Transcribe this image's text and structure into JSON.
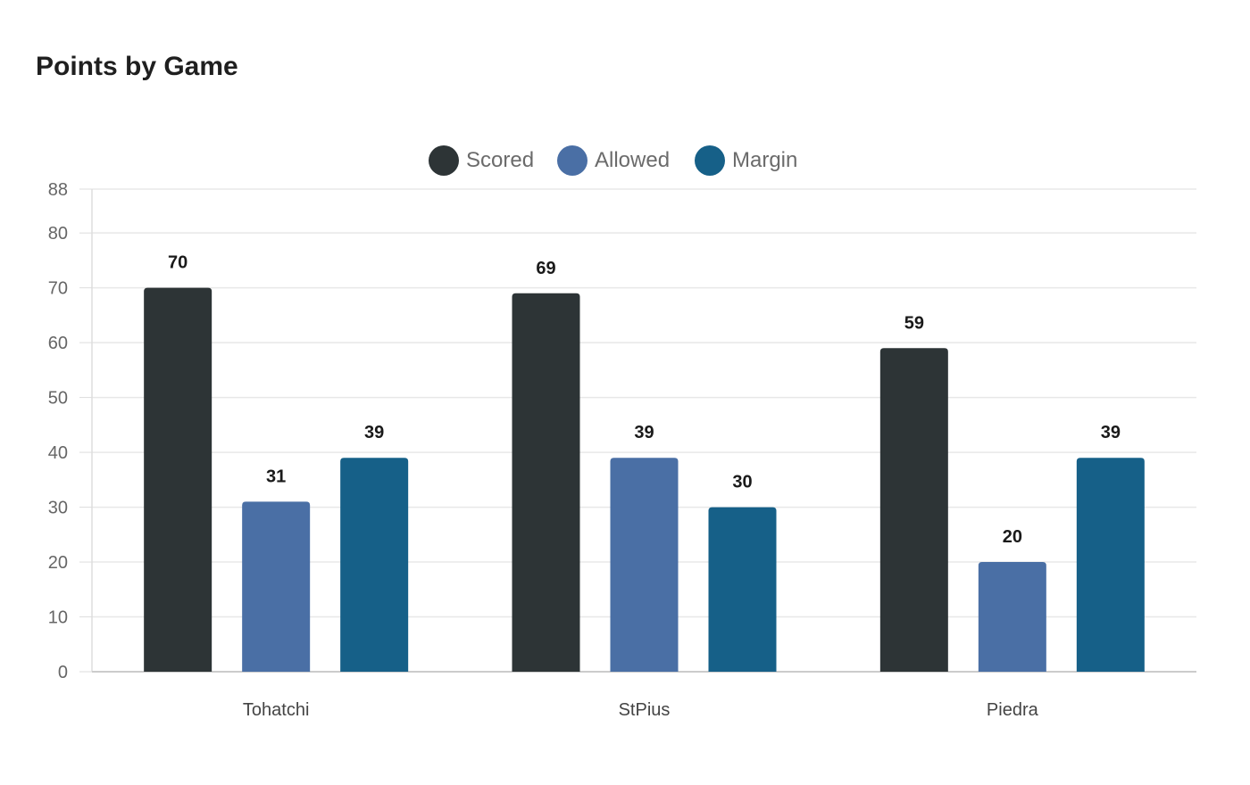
{
  "chart_data": {
    "type": "bar",
    "title": "Points by Game",
    "categories": [
      "Tohatchi",
      "StPius",
      "Piedra"
    ],
    "series": [
      {
        "name": "Scored",
        "values": [
          70,
          69,
          59
        ],
        "color": "#2d3436"
      },
      {
        "name": "Allowed",
        "values": [
          31,
          39,
          20
        ],
        "color": "#4a6fa5"
      },
      {
        "name": "Margin",
        "values": [
          39,
          30,
          39
        ],
        "color": "#166088"
      }
    ],
    "xlabel": "",
    "ylabel": "",
    "ylim": [
      0,
      88
    ],
    "yticks": [
      0,
      10,
      20,
      30,
      40,
      50,
      60,
      70,
      80,
      88
    ],
    "grid": true,
    "legend_position": "top-center",
    "data_labels": true
  }
}
